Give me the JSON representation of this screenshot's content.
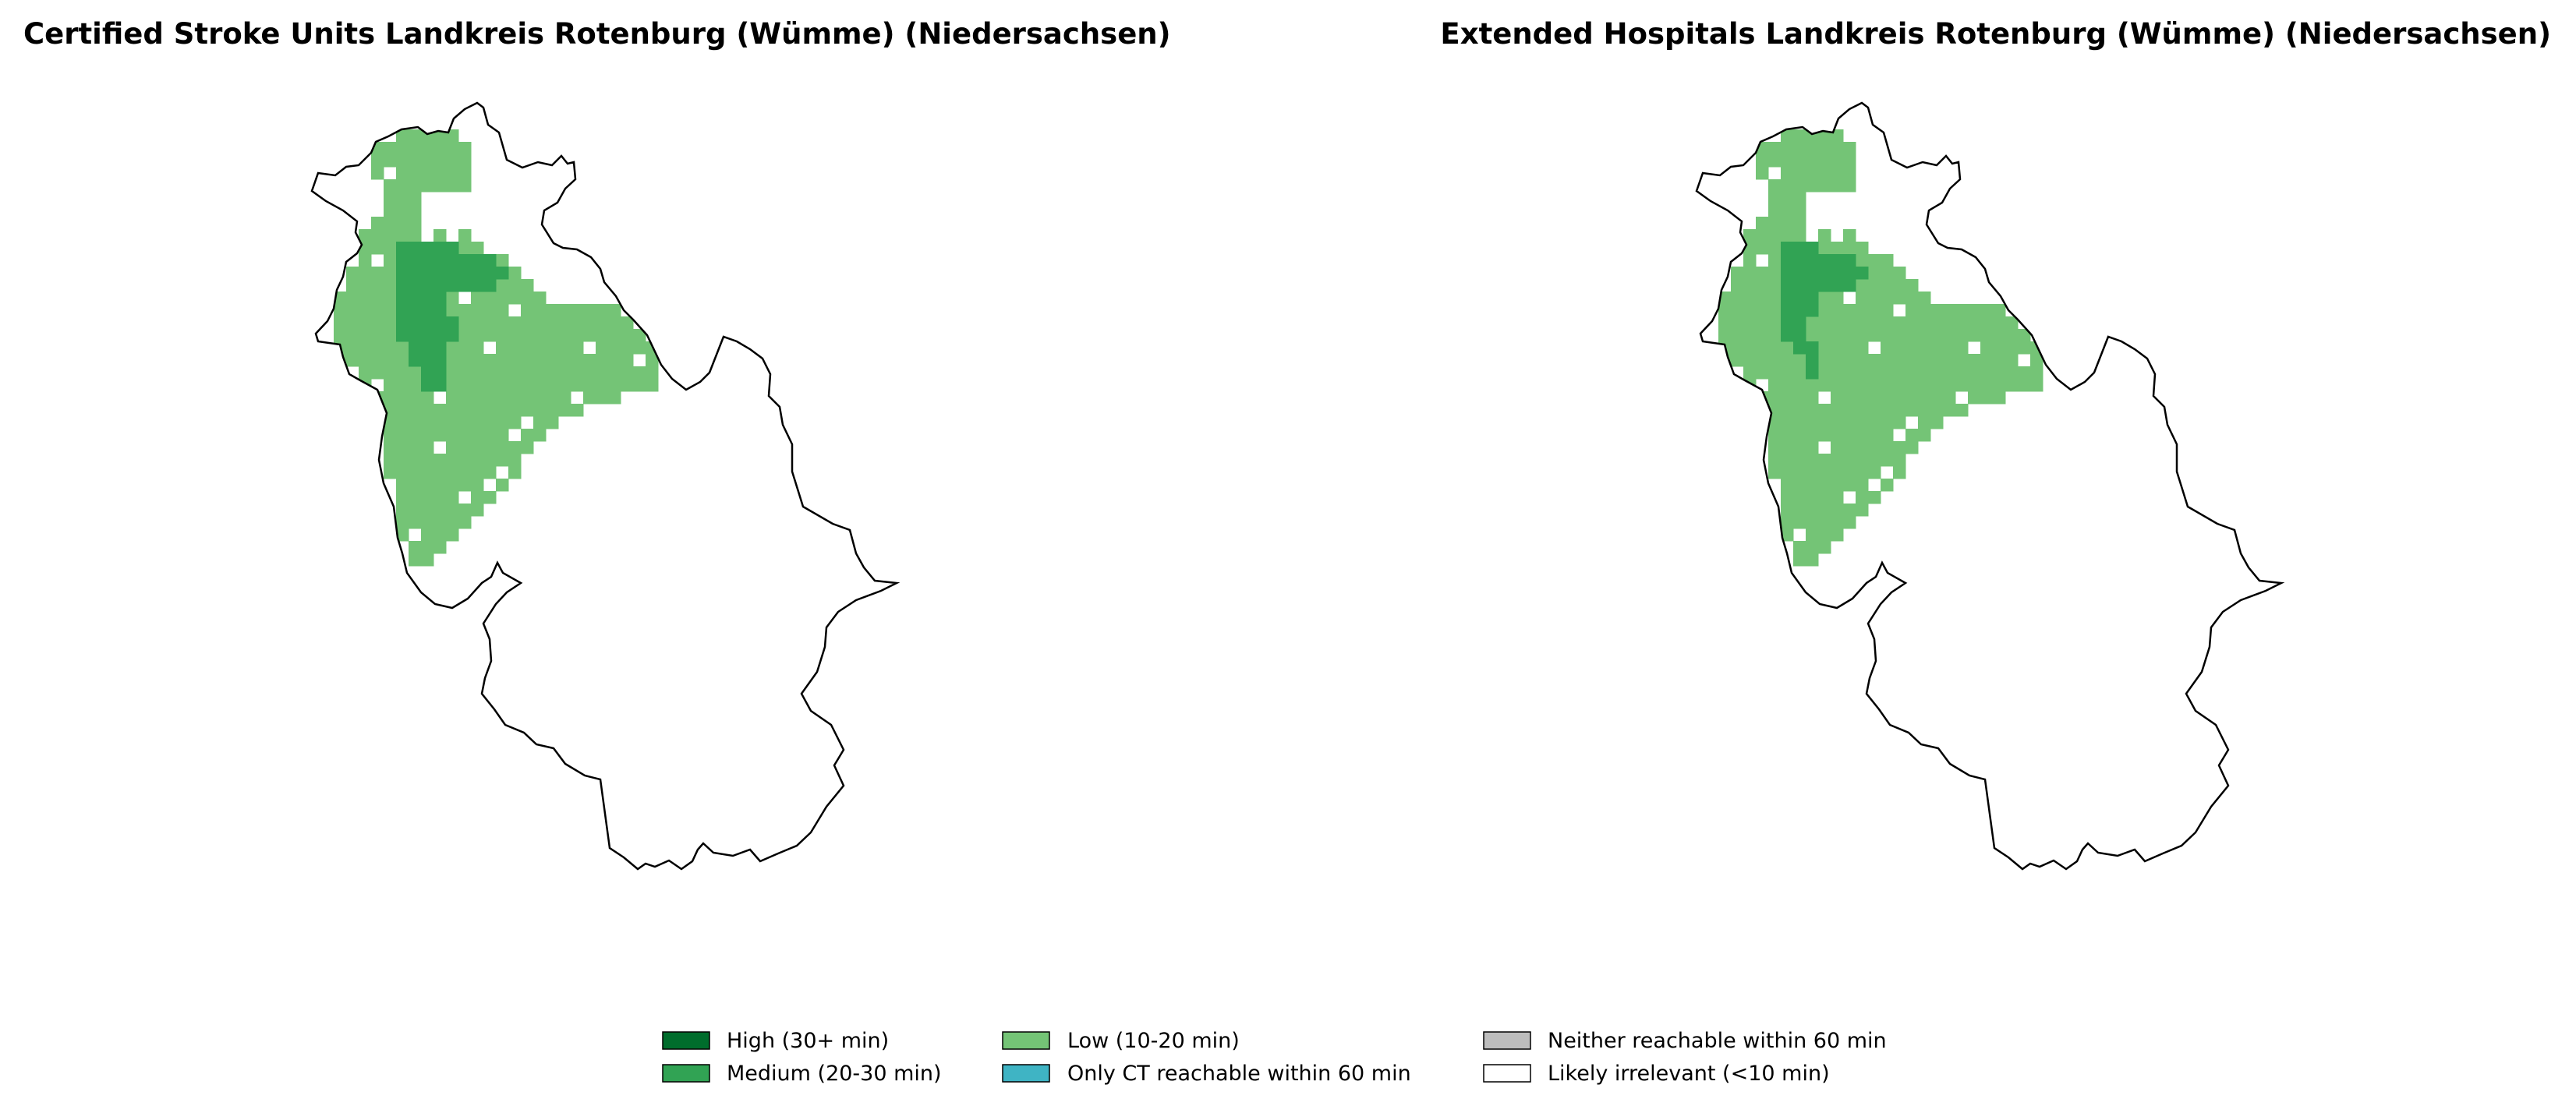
{
  "maps": [
    {
      "title": "Certified Stroke Units Landkreis Rotenburg (Wümme) (Niedersachsen)",
      "high_cells": [
        [
          8,
          10
        ],
        [
          9,
          10
        ],
        [
          10,
          10
        ],
        [
          11,
          10
        ],
        [
          12,
          10
        ],
        [
          8,
          11
        ],
        [
          9,
          11
        ],
        [
          10,
          11
        ],
        [
          11,
          11
        ],
        [
          12,
          11
        ],
        [
          13,
          11
        ],
        [
          14,
          11
        ],
        [
          15,
          11
        ],
        [
          8,
          12
        ],
        [
          9,
          12
        ],
        [
          10,
          12
        ],
        [
          11,
          12
        ],
        [
          12,
          12
        ],
        [
          13,
          12
        ],
        [
          14,
          12
        ],
        [
          15,
          12
        ],
        [
          16,
          12
        ],
        [
          8,
          13
        ],
        [
          9,
          13
        ],
        [
          10,
          13
        ],
        [
          11,
          13
        ],
        [
          12,
          13
        ],
        [
          13,
          13
        ],
        [
          14,
          13
        ],
        [
          15,
          13
        ],
        [
          8,
          14
        ],
        [
          9,
          14
        ],
        [
          10,
          14
        ],
        [
          11,
          14
        ],
        [
          8,
          15
        ],
        [
          9,
          15
        ],
        [
          10,
          15
        ],
        [
          11,
          15
        ],
        [
          8,
          16
        ],
        [
          9,
          16
        ],
        [
          10,
          16
        ],
        [
          11,
          16
        ],
        [
          12,
          16
        ],
        [
          8,
          17
        ],
        [
          9,
          17
        ],
        [
          10,
          17
        ],
        [
          11,
          17
        ],
        [
          12,
          17
        ],
        [
          9,
          18
        ],
        [
          10,
          18
        ],
        [
          11,
          18
        ],
        [
          9,
          19
        ],
        [
          10,
          19
        ],
        [
          11,
          19
        ],
        [
          10,
          20
        ],
        [
          11,
          20
        ],
        [
          10,
          21
        ],
        [
          11,
          21
        ]
      ]
    },
    {
      "title": "Extended Hospitals Landkreis Rotenburg (Wümme) (Niedersachsen)",
      "high_cells": [
        [
          8,
          10
        ],
        [
          9,
          10
        ],
        [
          10,
          10
        ],
        [
          8,
          11
        ],
        [
          9,
          11
        ],
        [
          10,
          11
        ],
        [
          11,
          11
        ],
        [
          12,
          11
        ],
        [
          13,
          11
        ],
        [
          8,
          12
        ],
        [
          9,
          12
        ],
        [
          10,
          12
        ],
        [
          11,
          12
        ],
        [
          12,
          12
        ],
        [
          13,
          12
        ],
        [
          14,
          12
        ],
        [
          8,
          13
        ],
        [
          9,
          13
        ],
        [
          10,
          13
        ],
        [
          11,
          13
        ],
        [
          12,
          13
        ],
        [
          13,
          13
        ],
        [
          8,
          14
        ],
        [
          9,
          14
        ],
        [
          10,
          14
        ],
        [
          8,
          15
        ],
        [
          9,
          15
        ],
        [
          10,
          15
        ],
        [
          8,
          16
        ],
        [
          9,
          16
        ],
        [
          8,
          17
        ],
        [
          9,
          17
        ],
        [
          9,
          18
        ],
        [
          10,
          18
        ],
        [
          10,
          19
        ],
        [
          10,
          20
        ]
      ]
    }
  ],
  "legend": {
    "high": "High (30+ min)",
    "medium": "Medium (20-30 min)",
    "low": "Low (10-20 min)",
    "ct_only": "Only CT reachable within 60 min",
    "neither": "Neither reachable within 60 min",
    "irrelevant": "Likely irrelevant (<10 min)"
  },
  "colors": {
    "high": "#006d2c",
    "medium": "#31a354",
    "low": "#74c476",
    "ct_only": "#3fb4c4",
    "neither": "#bdbdbd",
    "irrelevant": "#ffffff"
  }
}
